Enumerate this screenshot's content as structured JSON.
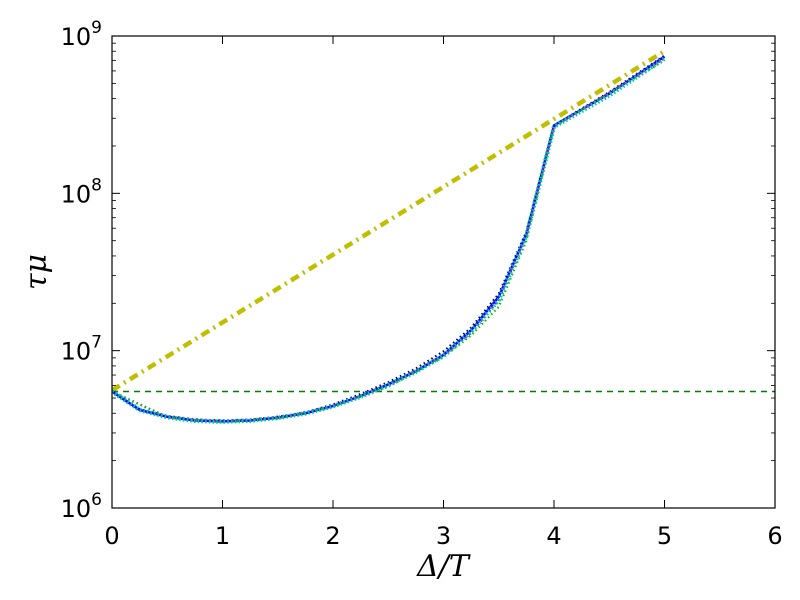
{
  "chart_data": {
    "type": "line",
    "title": "",
    "xlabel": "Δ/T",
    "ylabel": "τμ",
    "xlim": [
      0,
      6
    ],
    "ylim": [
      1000000,
      1000000000
    ],
    "yscale": "log",
    "x_ticks": [
      0,
      1,
      2,
      3,
      4,
      5,
      6
    ],
    "x_tick_labels": [
      "0",
      "1",
      "2",
      "3",
      "4",
      "5",
      "6"
    ],
    "y_ticks": [
      1000000,
      10000000,
      100000000,
      1000000000
    ],
    "y_tick_labels": [
      {
        "base": "10",
        "exp": "6"
      },
      {
        "base": "10",
        "exp": "7"
      },
      {
        "base": "10",
        "exp": "8"
      },
      {
        "base": "10",
        "exp": "9"
      }
    ],
    "grid": false,
    "legend": "none",
    "series": [
      {
        "color": "#bfbf00",
        "style": "dashdot-thick",
        "x": [
          0,
          5
        ],
        "y": [
          5600000,
          800000000
        ]
      },
      {
        "color": "#007f00",
        "style": "dashed",
        "x": [
          0,
          6
        ],
        "y": [
          5500000,
          5500000
        ]
      },
      {
        "color": "#00007f",
        "style": "dotted",
        "x": [
          0,
          0.25,
          0.5,
          0.75,
          1.0,
          1.25,
          1.5,
          1.75,
          2.0,
          2.25,
          2.5,
          2.75,
          3.0,
          3.25,
          3.5,
          3.75,
          4.0,
          4.5,
          5.0
        ],
        "y": [
          5500000,
          4250000,
          3850000,
          3650000,
          3600000,
          3650000,
          3800000,
          4050000,
          4550000,
          5300000,
          6300000,
          7700000,
          9900000,
          14000000,
          23000000,
          57000000,
          270000000,
          440000000,
          750000000
        ]
      },
      {
        "color": "#0000ff",
        "style": "solid",
        "x": [
          0,
          0.25,
          0.5,
          0.75,
          1.0,
          1.25,
          1.5,
          1.75,
          2.0,
          2.25,
          2.5,
          2.75,
          3.0,
          3.25,
          3.5,
          3.75,
          4.0,
          4.5,
          5.0
        ],
        "y": [
          5500000,
          4200000,
          3800000,
          3600000,
          3550000,
          3600000,
          3750000,
          4000000,
          4450000,
          5150000,
          6100000,
          7400000,
          9400000,
          13500000,
          22000000,
          55000000,
          270000000,
          430000000,
          740000000
        ]
      },
      {
        "color": "#bf00bf",
        "style": "dotted",
        "x": [
          0,
          0.5,
          1.0,
          1.5,
          2.0,
          2.5,
          3.0,
          3.25,
          3.5,
          3.75,
          4.0,
          5.0
        ],
        "y": [
          5500000,
          3800000,
          3550000,
          3750000,
          4450000,
          6000000,
          9300000,
          13000000,
          21000000,
          54000000,
          265000000,
          720000000
        ]
      },
      {
        "color": "#00bf00",
        "style": "dotted",
        "x": [
          0,
          0.5,
          1.0,
          1.5,
          2.0,
          2.5,
          3.0,
          3.25,
          3.5,
          3.75,
          4.0,
          5.0
        ],
        "y": [
          5500000,
          3750000,
          3500000,
          3700000,
          4400000,
          5900000,
          9100000,
          12500000,
          19000000,
          50000000,
          265000000,
          700000000
        ]
      },
      {
        "color": "#00bfbf",
        "style": "thick-dotted",
        "x": [
          0,
          0.25,
          0.5,
          0.75,
          1.0,
          1.25,
          1.5,
          1.75,
          2.0,
          2.25,
          2.5,
          2.75,
          3.0,
          3.25,
          3.5,
          3.75,
          4.0,
          4.5,
          5.0
        ],
        "y": [
          5500000,
          4200000,
          3780000,
          3580000,
          3540000,
          3590000,
          3740000,
          3990000,
          4430000,
          5100000,
          6050000,
          7350000,
          9300000,
          13200000,
          21000000,
          54000000,
          265000000,
          420000000,
          720000000
        ]
      }
    ]
  }
}
